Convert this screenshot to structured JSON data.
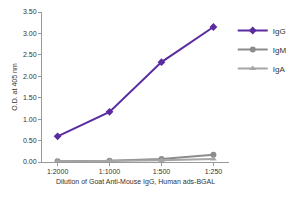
{
  "chart_data": {
    "type": "line",
    "x_label": "Dilution of Goat Anti-Mouse IgG, Human ads-BGAL",
    "y_label": "O.D. at 405 nm",
    "categories": [
      "1:2000",
      "1:1000",
      "1:500",
      "1:250"
    ],
    "series": [
      {
        "name": "IgG",
        "color": "#5a2ca0",
        "marker": "diamond",
        "line_style": "solid",
        "values": [
          0.6,
          1.17,
          2.33,
          3.15
        ]
      },
      {
        "name": "IgM",
        "color": "#8c8c8c",
        "marker": "circle",
        "line_style": "solid",
        "values": [
          0.02,
          0.03,
          0.07,
          0.17
        ]
      },
      {
        "name": "IgA",
        "color": "#a6a6a6",
        "marker": "triangle-up",
        "line_style": "solid",
        "values": [
          0.01,
          0.02,
          0.04,
          0.07
        ]
      }
    ],
    "ylim": [
      0,
      3.5
    ],
    "yticks": [
      {
        "value": 0,
        "label": "0.00"
      },
      {
        "value": 0.5,
        "label": "0.50"
      },
      {
        "value": 1,
        "label": "1.00"
      },
      {
        "value": 1.5,
        "label": "1.50"
      },
      {
        "value": 2,
        "label": "2.00"
      },
      {
        "value": 2.5,
        "label": "2.50"
      },
      {
        "value": 3,
        "label": "3.00"
      },
      {
        "value": 3.5,
        "label": "3.50"
      }
    ],
    "grid": false,
    "legend": "right"
  }
}
